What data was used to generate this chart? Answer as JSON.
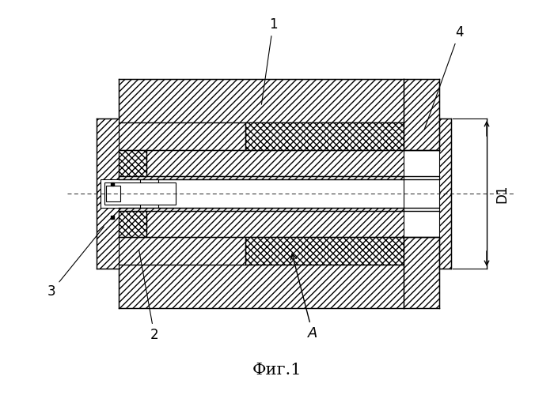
{
  "title": "Фиг.1",
  "bg_color": "#ffffff",
  "label_1": "1",
  "label_2": "2",
  "label_3": "3",
  "label_4": "4",
  "label_A": "A",
  "label_D1": "D1",
  "font_size_title": 15,
  "font_size_labels": 12
}
